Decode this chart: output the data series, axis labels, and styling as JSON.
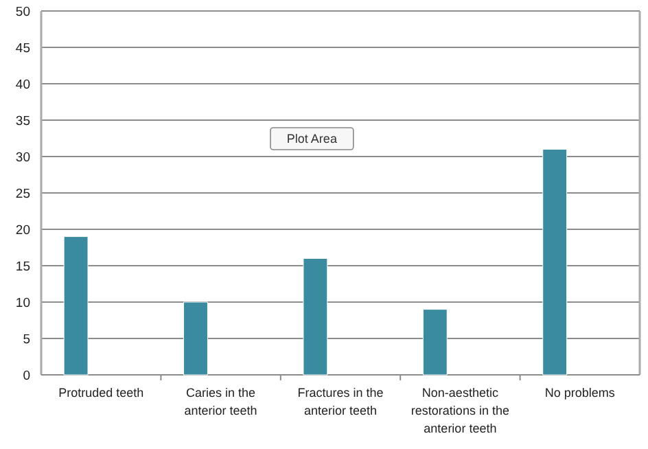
{
  "chart_data": {
    "type": "bar",
    "categories": [
      "Protruded teeth",
      "Caries in the anterior teeth",
      "Fractures in the anterior teeth",
      "Non-aesthetic restorations in the anterior teeth",
      "No problems"
    ],
    "values": [
      19,
      10,
      16,
      9,
      31
    ],
    "color": "#3a8aa0",
    "ylim": [
      0,
      50
    ],
    "yticks": [
      0,
      5,
      10,
      15,
      20,
      25,
      30,
      35,
      40,
      45,
      50
    ],
    "grid": "y",
    "annotations": [
      "Plot Area"
    ]
  }
}
